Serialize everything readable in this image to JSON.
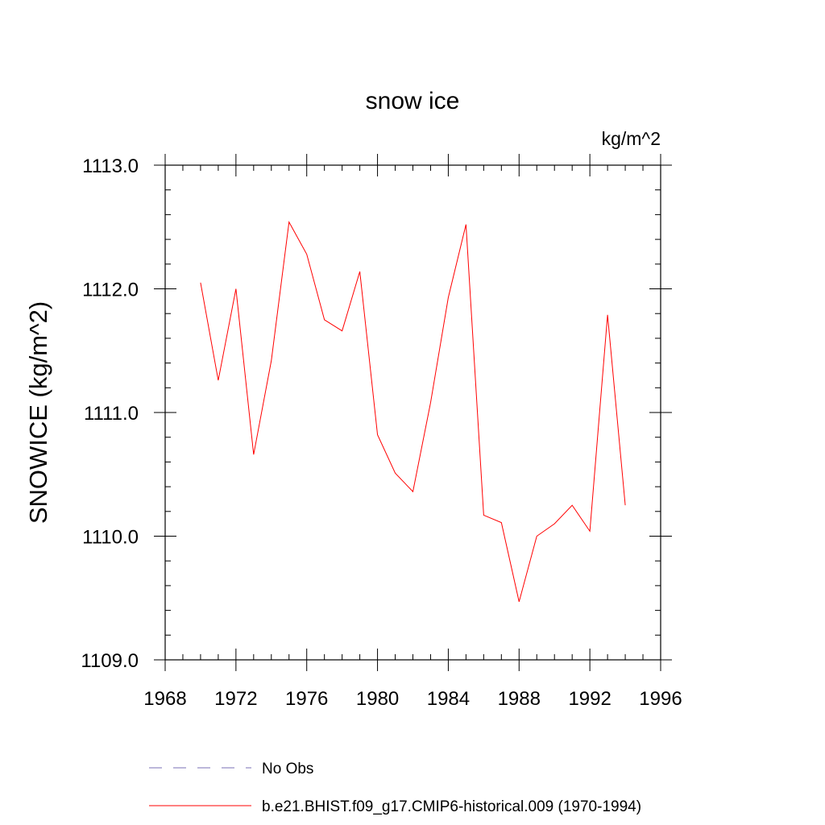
{
  "chart_data": {
    "type": "line",
    "title": "snow ice",
    "units": "kg/m^2",
    "ylabel": "SNOWICE  (kg/m^2)",
    "xlabel": "",
    "xlim": [
      1968,
      1996
    ],
    "ylim": [
      1109.0,
      1113.0
    ],
    "x_major_ticks": [
      1968,
      1972,
      1976,
      1980,
      1984,
      1988,
      1992,
      1996
    ],
    "x_minor_ticks": [
      1969,
      1970,
      1971,
      1973,
      1974,
      1975,
      1977,
      1978,
      1979,
      1981,
      1982,
      1983,
      1985,
      1986,
      1987,
      1989,
      1990,
      1991,
      1993,
      1994,
      1995
    ],
    "x_tick_labels": [
      "1968",
      "1972",
      "1976",
      "1980",
      "1984",
      "1988",
      "1992",
      "1996"
    ],
    "y_major_ticks": [
      1109.0,
      1110.0,
      1111.0,
      1112.0,
      1113.0
    ],
    "y_minor_ticks": [
      1109.2,
      1109.4,
      1109.6,
      1109.8,
      1110.2,
      1110.4,
      1110.6,
      1110.8,
      1111.2,
      1111.4,
      1111.6,
      1111.8,
      1112.2,
      1112.4,
      1112.6,
      1112.8
    ],
    "y_tick_labels": [
      "1109.0",
      "1110.0",
      "1111.0",
      "1112.0",
      "1113.0"
    ],
    "grid": false,
    "legend_position": "bottom",
    "series": [
      {
        "name": "b.e21.BHIST.f09_g17.CMIP6-historical.009 (1970-1994)",
        "color": "#ff0000",
        "style": "solid",
        "x": [
          1970,
          1971,
          1972,
          1973,
          1974,
          1975,
          1976,
          1977,
          1978,
          1979,
          1980,
          1981,
          1982,
          1983,
          1984,
          1985,
          1986,
          1987,
          1988,
          1989,
          1990,
          1991,
          1992,
          1993,
          1994
        ],
        "values": [
          1112.05,
          1111.26,
          1112.0,
          1110.66,
          1111.42,
          1112.54,
          1112.28,
          1111.75,
          1111.66,
          1112.14,
          1110.82,
          1110.51,
          1110.36,
          1111.08,
          1111.93,
          1112.52,
          1110.17,
          1110.11,
          1109.47,
          1110.0,
          1110.1,
          1110.25,
          1110.04,
          1111.79,
          1110.25
        ]
      }
    ],
    "legend": [
      {
        "label": "No Obs",
        "color": "#7a6fb4",
        "style": "dashed"
      },
      {
        "label": "b.e21.BHIST.f09_g17.CMIP6-historical.009 (1970-1994)",
        "color": "#ff0000",
        "style": "solid"
      }
    ]
  }
}
